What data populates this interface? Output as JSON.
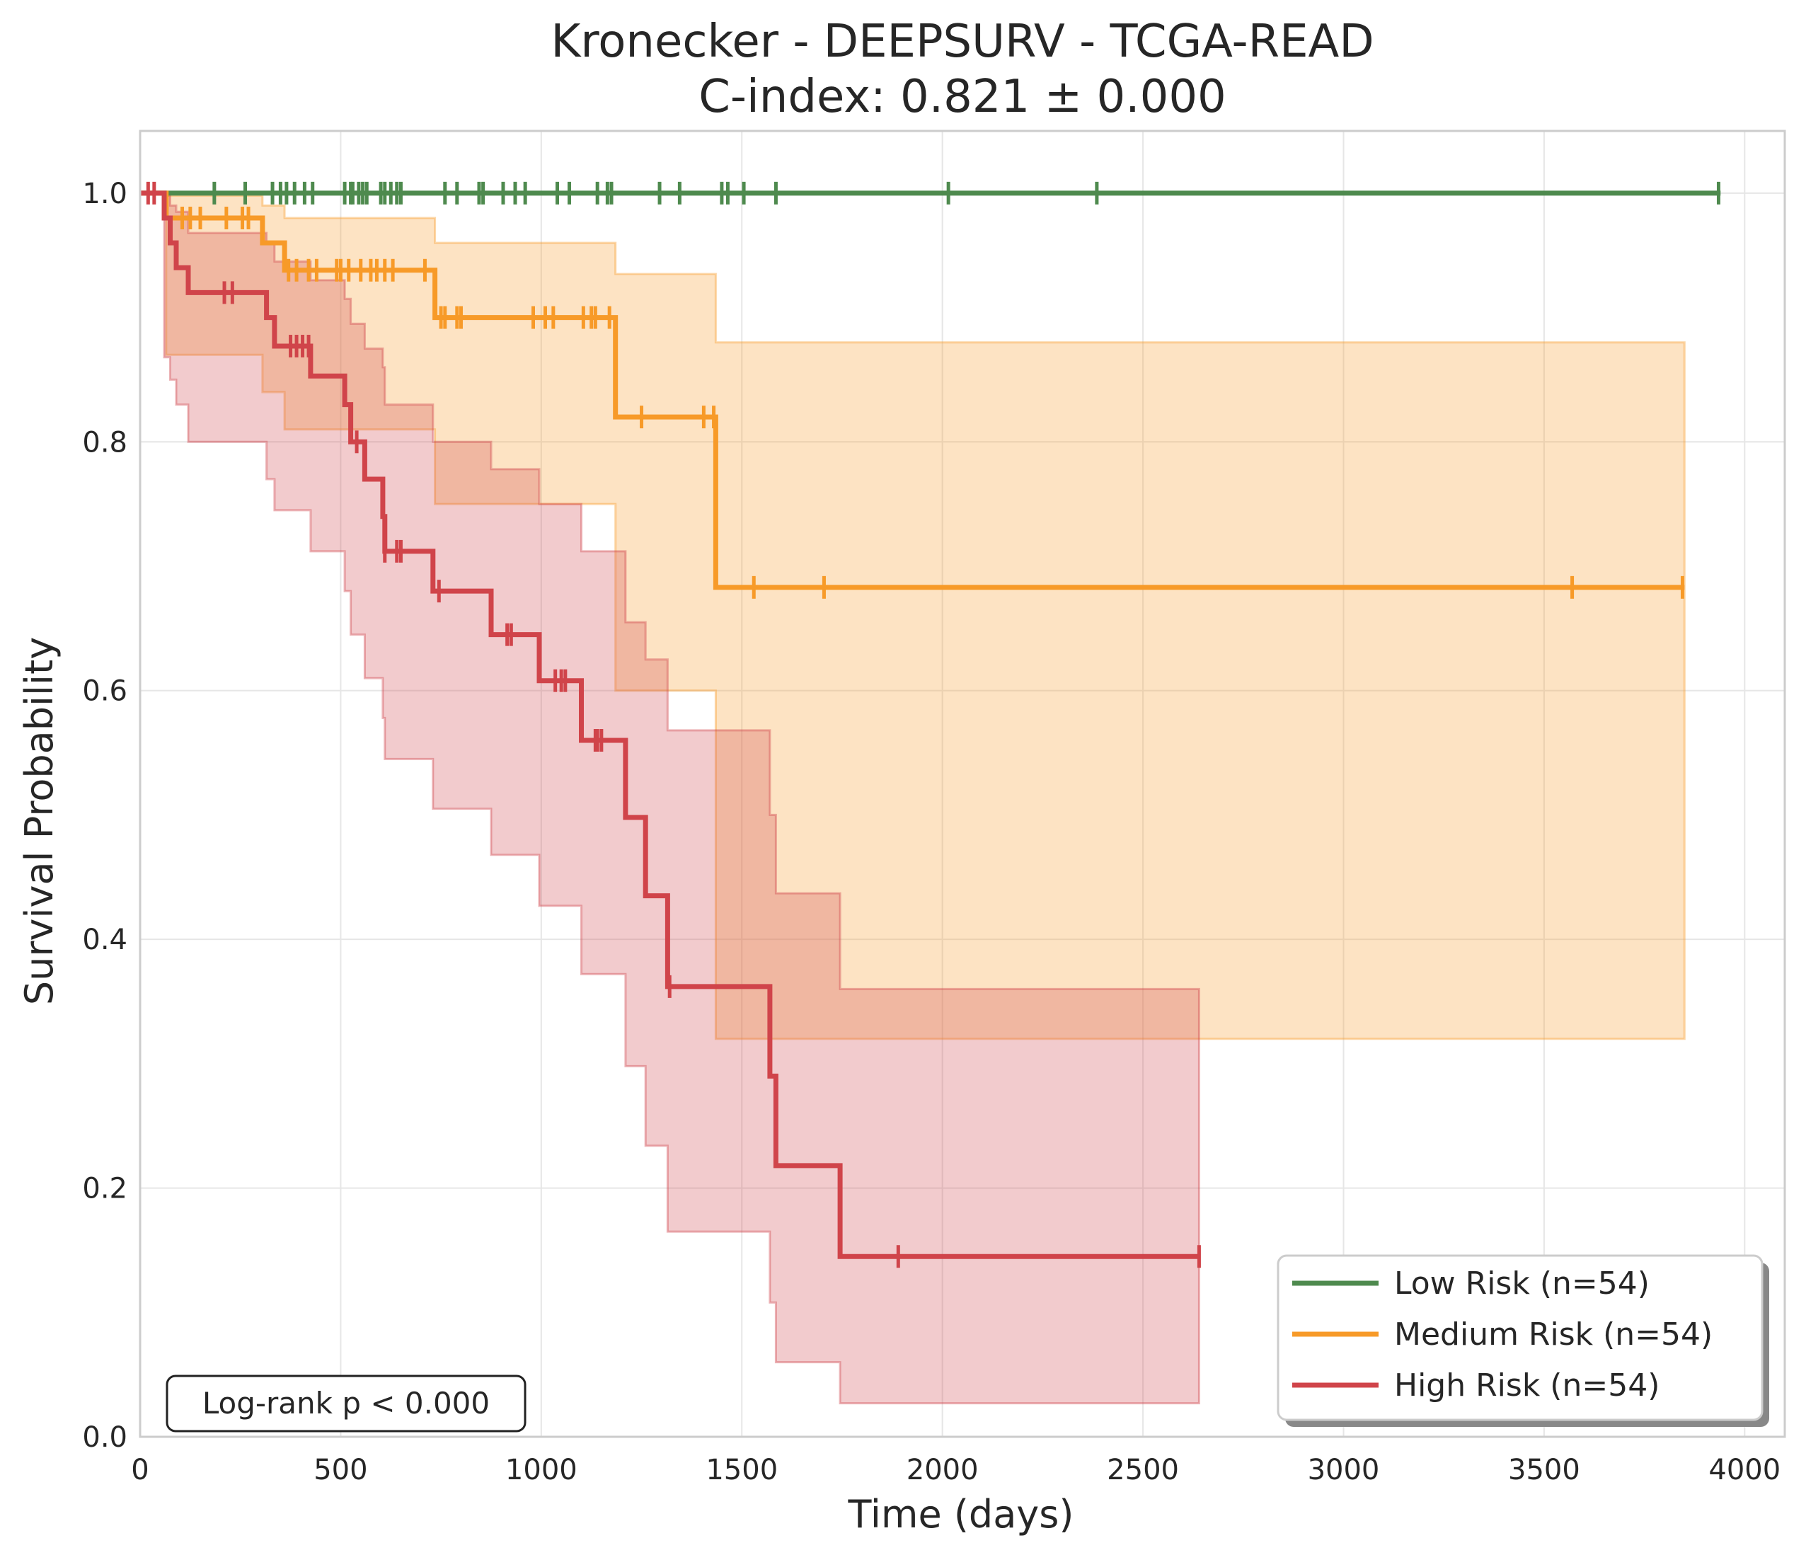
{
  "chart_data": {
    "type": "line",
    "subtype": "kaplan-meier step curves with confidence bands",
    "title": "Kronecker - DEEPSURV - TCGA-READ",
    "subtitle": "C-index: 0.821 ± 0.000",
    "xlabel": "Time (days)",
    "ylabel": "Survival Probability",
    "xlim": [
      0,
      4100
    ],
    "ylim": [
      0.0,
      1.05
    ],
    "xticks": [
      0,
      500,
      1000,
      1500,
      2000,
      2500,
      3000,
      3500,
      4000
    ],
    "xtick_labels": [
      "0",
      "500",
      "1000",
      "1500",
      "2000",
      "2500",
      "3000",
      "3500",
      "4000"
    ],
    "yticks": [
      0.0,
      0.2,
      0.4,
      0.6,
      0.8,
      1.0
    ],
    "ytick_labels": [
      "0.0",
      "0.2",
      "0.4",
      "0.6",
      "0.8",
      "1.0"
    ],
    "grid": true,
    "legend_position": "lower-right",
    "annotation": "Log-rank p < 0.000",
    "series": [
      {
        "name": "Low Risk (n=54)",
        "color": "#4e8a4e",
        "steps": [
          [
            0,
            1.0
          ],
          [
            3940,
            1.0
          ]
        ],
        "ci_band": [],
        "censor_times": [
          185,
          262,
          330,
          350,
          365,
          385,
          410,
          430,
          510,
          525,
          530,
          545,
          555,
          565,
          600,
          610,
          625,
          640,
          650,
          760,
          790,
          845,
          855,
          905,
          935,
          960,
          1040,
          1070,
          1140,
          1165,
          1175,
          1295,
          1345,
          1450,
          1465,
          1505,
          1585,
          2015,
          2385,
          3935
        ]
      },
      {
        "name": "Medium Risk (n=54)",
        "color": "#f79a28",
        "steps": [
          [
            0,
            1.0
          ],
          [
            65,
            1.0
          ],
          [
            65,
            0.98
          ],
          [
            305,
            0.98
          ],
          [
            305,
            0.96
          ],
          [
            360,
            0.96
          ],
          [
            360,
            0.938
          ],
          [
            735,
            0.938
          ],
          [
            735,
            0.9
          ],
          [
            1185,
            0.9
          ],
          [
            1185,
            0.82
          ],
          [
            1435,
            0.82
          ],
          [
            1435,
            0.683
          ],
          [
            3850,
            0.683
          ]
        ],
        "ci_band": [
          [
            0,
            1.0,
            1.0
          ],
          [
            65,
            0.998,
            0.87
          ],
          [
            305,
            0.99,
            0.84
          ],
          [
            360,
            0.98,
            0.81
          ],
          [
            735,
            0.96,
            0.75
          ],
          [
            1000,
            0.96,
            0.75
          ],
          [
            1185,
            0.935,
            0.6
          ],
          [
            1435,
            0.88,
            0.32
          ],
          [
            3850,
            0.88,
            0.32
          ]
        ],
        "censor_times": [
          105,
          125,
          150,
          215,
          255,
          270,
          370,
          390,
          420,
          440,
          490,
          500,
          520,
          550,
          575,
          590,
          610,
          630,
          710,
          750,
          760,
          790,
          800,
          980,
          1010,
          1030,
          1105,
          1125,
          1135,
          1170,
          1250,
          1405,
          1430,
          1530,
          1705,
          3570,
          3845
        ]
      },
      {
        "name": "High Risk (n=54)",
        "color": "#d0444a",
        "steps": [
          [
            0,
            1.0
          ],
          [
            60,
            1.0
          ],
          [
            60,
            0.98
          ],
          [
            75,
            0.98
          ],
          [
            75,
            0.96
          ],
          [
            90,
            0.96
          ],
          [
            90,
            0.94
          ],
          [
            120,
            0.94
          ],
          [
            120,
            0.92
          ],
          [
            315,
            0.92
          ],
          [
            315,
            0.9
          ],
          [
            335,
            0.9
          ],
          [
            335,
            0.877
          ],
          [
            425,
            0.877
          ],
          [
            425,
            0.853
          ],
          [
            510,
            0.853
          ],
          [
            510,
            0.83
          ],
          [
            525,
            0.83
          ],
          [
            525,
            0.8
          ],
          [
            560,
            0.8
          ],
          [
            560,
            0.77
          ],
          [
            605,
            0.77
          ],
          [
            605,
            0.74
          ],
          [
            610,
            0.74
          ],
          [
            610,
            0.712
          ],
          [
            730,
            0.712
          ],
          [
            730,
            0.68
          ],
          [
            875,
            0.68
          ],
          [
            875,
            0.645
          ],
          [
            995,
            0.645
          ],
          [
            995,
            0.608
          ],
          [
            1100,
            0.608
          ],
          [
            1100,
            0.56
          ],
          [
            1210,
            0.56
          ],
          [
            1210,
            0.498
          ],
          [
            1260,
            0.498
          ],
          [
            1260,
            0.435
          ],
          [
            1315,
            0.435
          ],
          [
            1315,
            0.362
          ],
          [
            1570,
            0.362
          ],
          [
            1570,
            0.29
          ],
          [
            1585,
            0.29
          ],
          [
            1585,
            0.218
          ],
          [
            1745,
            0.218
          ],
          [
            1745,
            0.145
          ],
          [
            2640,
            0.145
          ]
        ],
        "ci_band": [
          [
            0,
            1.0,
            1.0
          ],
          [
            60,
            0.998,
            0.868
          ],
          [
            75,
            0.99,
            0.85
          ],
          [
            90,
            0.985,
            0.83
          ],
          [
            120,
            0.968,
            0.8
          ],
          [
            315,
            0.96,
            0.77
          ],
          [
            335,
            0.945,
            0.745
          ],
          [
            425,
            0.93,
            0.712
          ],
          [
            510,
            0.915,
            0.68
          ],
          [
            525,
            0.895,
            0.645
          ],
          [
            560,
            0.875,
            0.61
          ],
          [
            605,
            0.86,
            0.578
          ],
          [
            610,
            0.83,
            0.545
          ],
          [
            730,
            0.8,
            0.505
          ],
          [
            875,
            0.778,
            0.468
          ],
          [
            995,
            0.75,
            0.427
          ],
          [
            1100,
            0.712,
            0.372
          ],
          [
            1210,
            0.655,
            0.298
          ],
          [
            1260,
            0.625,
            0.234
          ],
          [
            1315,
            0.568,
            0.165
          ],
          [
            1570,
            0.5,
            0.108
          ],
          [
            1585,
            0.437,
            0.06
          ],
          [
            1745,
            0.36,
            0.027
          ],
          [
            2640,
            0.36,
            0.027
          ]
        ],
        "censor_times": [
          20,
          35,
          210,
          230,
          375,
          390,
          405,
          420,
          540,
          610,
          640,
          650,
          745,
          915,
          925,
          1035,
          1050,
          1060,
          1135,
          1140,
          1150,
          1320,
          1890,
          2640
        ]
      }
    ]
  }
}
